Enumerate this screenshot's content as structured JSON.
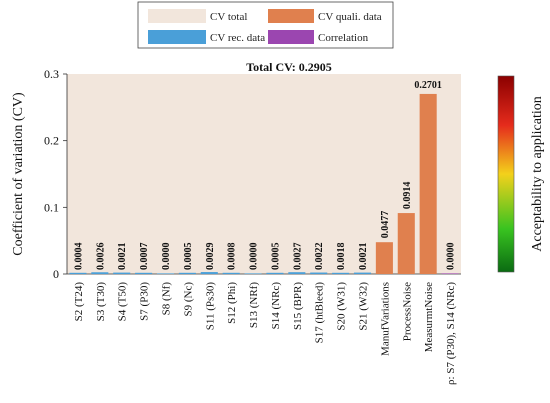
{
  "legend": [
    {
      "label": "CV total",
      "color": "#f2e6dc"
    },
    {
      "label": "CV quali. data",
      "color": "#e0804e"
    },
    {
      "label": "CV rec. data",
      "color": "#4a9fd8"
    },
    {
      "label": "Correlation",
      "color": "#9b46b0"
    }
  ],
  "total_label": "Total CV: 0.2905",
  "colorbar_label": "Acceptability to application",
  "chart_data": {
    "type": "bar",
    "title": "",
    "xlabel": "",
    "ylabel": "Coefficient of variation  (CV)",
    "ylim": [
      0,
      0.3
    ],
    "yticks": [
      "0",
      "0.1",
      "0.2",
      "0.3"
    ],
    "background_total": 0.2905,
    "categories": [
      "S2 (T24)",
      "S3 (T30)",
      "S4 (T50)",
      "S7 (P30)",
      "S8 (Nf)",
      "S9 (Nc)",
      "S11 (Ps30)",
      "S12 (Phi)",
      "S13 (NRf)",
      "S14 (NRc)",
      "S15 (BPR)",
      "S17 (htBleed)",
      "S20 (W31)",
      "S21 (W32)",
      "ManufVariations",
      "ProcessNoise",
      "MeasurmtNoise",
      "ρ: S7 (P30), S14 (NRc)"
    ],
    "values": [
      0.0004,
      0.0026,
      0.0021,
      0.0007,
      0.0,
      0.0005,
      0.0029,
      0.0008,
      0.0,
      0.0005,
      0.0027,
      0.0022,
      0.0018,
      0.0021,
      0.0477,
      0.0914,
      0.2701,
      0.0
    ],
    "value_labels": [
      "0.0004",
      "0.0026",
      "0.0021",
      "0.0007",
      "0.0000",
      "0.0005",
      "0.0029",
      "0.0008",
      "0.0000",
      "0.0005",
      "0.0027",
      "0.0022",
      "0.0018",
      "0.0021",
      "0.0477",
      "0.0914",
      "0.2701",
      "0.0000"
    ],
    "groups": [
      "rec",
      "rec",
      "rec",
      "rec",
      "rec",
      "rec",
      "rec",
      "rec",
      "rec",
      "rec",
      "rec",
      "rec",
      "rec",
      "rec",
      "quali",
      "quali",
      "quali",
      "corr"
    ],
    "colors": {
      "rec": "#4a9fd8",
      "quali": "#e0804e",
      "corr": "#9b46b0",
      "total": "#f2e6dc"
    }
  }
}
